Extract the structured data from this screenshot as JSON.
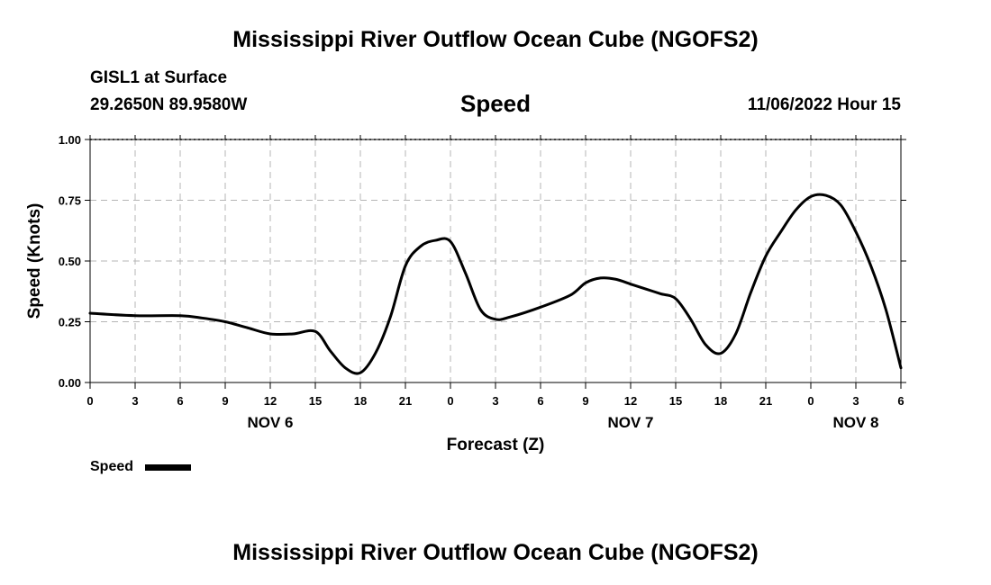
{
  "header": {
    "title": "Mississippi River Outflow Ocean Cube (NGOFS2)",
    "station": "GISL1 at Surface",
    "coords": "29.2650N  89.9580W",
    "variable": "Speed",
    "datetime": "11/06/2022 Hour 15"
  },
  "footer": {
    "title": "Mississippi River Outflow Ocean Cube (NGOFS2)"
  },
  "legend": {
    "label": "Speed",
    "color": "#000000"
  },
  "chart_data": {
    "type": "line",
    "title": "Speed",
    "xlabel": "Forecast (Z)",
    "ylabel": "Speed (Knots)",
    "ylim": [
      0,
      1
    ],
    "yticks": [
      "0.00",
      "0.25",
      "0.50",
      "0.75",
      "1.00"
    ],
    "xlim": [
      0,
      54
    ],
    "xtick_labels": [
      "0",
      "3",
      "6",
      "9",
      "12",
      "15",
      "18",
      "21",
      "0",
      "3",
      "6",
      "9",
      "12",
      "15",
      "18",
      "21",
      "0",
      "3",
      "6"
    ],
    "date_labels": [
      {
        "label": "NOV 6",
        "hour": 12
      },
      {
        "label": "NOV 7",
        "hour": 36
      },
      {
        "label": "NOV 8",
        "hour": 51
      }
    ],
    "grid": true,
    "series": [
      {
        "name": "Speed",
        "color": "#000000",
        "x": [
          0,
          3,
          6,
          7.5,
          9,
          10.5,
          12,
          13.5,
          15,
          16,
          17,
          18,
          19,
          20,
          21,
          22,
          23,
          24,
          25,
          26,
          27,
          28,
          30,
          32,
          33,
          34,
          35,
          36,
          37,
          38,
          39,
          40,
          41,
          42,
          43,
          44,
          45,
          46,
          47,
          48,
          49,
          50,
          51,
          52,
          53,
          54
        ],
        "y": [
          0.285,
          0.275,
          0.275,
          0.265,
          0.25,
          0.225,
          0.2,
          0.2,
          0.21,
          0.13,
          0.06,
          0.04,
          0.12,
          0.27,
          0.48,
          0.56,
          0.585,
          0.58,
          0.45,
          0.3,
          0.26,
          0.27,
          0.31,
          0.36,
          0.41,
          0.43,
          0.425,
          0.405,
          0.385,
          0.365,
          0.345,
          0.26,
          0.155,
          0.12,
          0.2,
          0.37,
          0.52,
          0.62,
          0.71,
          0.765,
          0.77,
          0.73,
          0.62,
          0.48,
          0.3,
          0.06
        ]
      }
    ]
  }
}
